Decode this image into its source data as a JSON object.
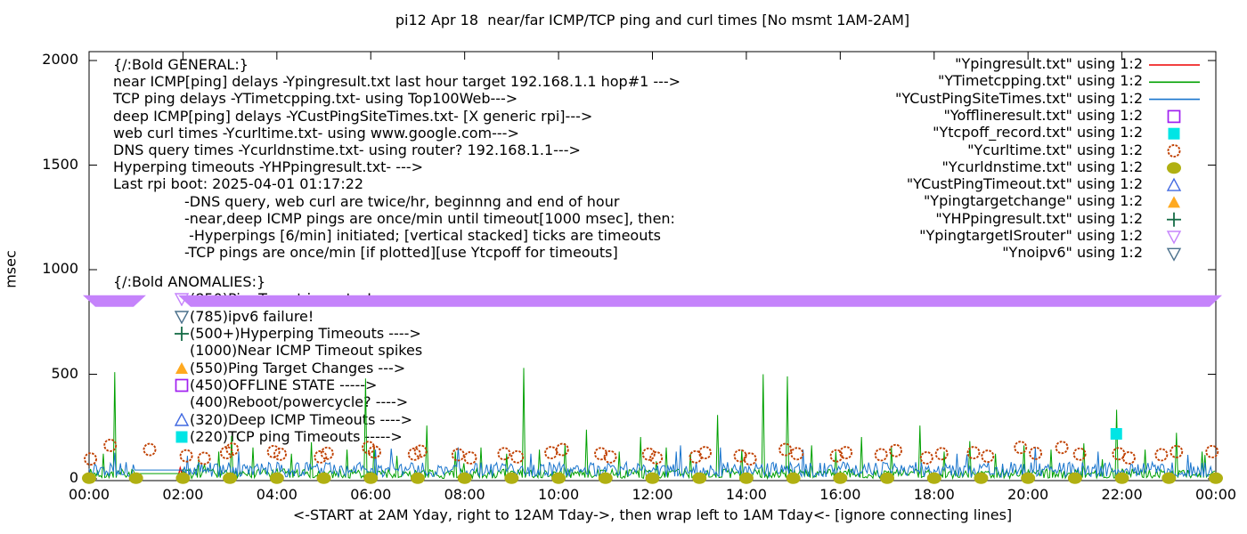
{
  "title": "pi12 Apr 18  near/far ICMP/TCP ping and curl times [No msmt 1AM-2AM]",
  "ylabel": "msec",
  "xlabel": "<-START at 2AM Yday, right to 12AM Tday->, then wrap left to 1AM Tday<- [ignore connecting lines]",
  "colors": {
    "near_icmp_red": "#ee0000",
    "tcp_ping_green": "#00a000",
    "deep_icmp_blue": "#1874cd",
    "offline_magenta": "#a020f0",
    "tcpoff_cyan": "#00e5e5",
    "curl_orange": "#c04000",
    "dns_olive": "#b0b012",
    "timeout_royalblue": "#4169e1",
    "targetchange_orange": "#ffa91f",
    "hyperping_green": "#156b45",
    "isrouter_violet": "#c583fb",
    "noipv6_steel": "#4a708b"
  },
  "annotations": {
    "general": {
      "lines": [
        "{/:Bold GENERAL:}",
        "near ICMP[ping] delays -Ypingresult.txt last hour target 192.168.1.1 hop#1 --->",
        "TCP ping delays -YTimetcpping.txt- using Top100Web--->",
        "deep ICMP[ping] delays -YCustPingSiteTimes.txt- [X generic rpi]--->",
        "web curl times -Ycurltime.txt- using www.google.com--->",
        "DNS query times -Ycurldnstime.txt- using router? 192.168.1.1--->",
        "Hyperping timeouts -YHPpingresult.txt- --->",
        "Last rpi boot: 2025-04-01 01:17:22"
      ],
      "indented": [
        "-DNS query, web curl are twice/hr, beginnng and end of hour",
        "-near,deep ICMP pings are once/min until timeout[1000 msec], then:",
        " -Hyperpings [6/min] initiated; [vertical stacked] ticks are timeouts",
        "-TCP pings are once/min [if plotted][use Ytcpoff for timeouts]"
      ]
    },
    "anomalies": {
      "header": "{/:Bold ANOMALIES:}",
      "items": [
        {
          "marker": "triangle-down-open",
          "color": "#c583fb",
          "text": "(850)PingTarget is router!"
        },
        {
          "marker": "triangle-down-open",
          "color": "#4a708b",
          "text": "(785)ipv6 failure!"
        },
        {
          "marker": "plus",
          "color": "#156b45",
          "text": "(500+)Hyperping Timeouts ---->"
        },
        {
          "marker": "",
          "color": "",
          "text": "(1000)Near ICMP Timeout spikes"
        },
        {
          "marker": "triangle-up-filled",
          "color": "#ffa91f",
          "text": "(550)Ping Target Changes --->"
        },
        {
          "marker": "square-open",
          "color": "#a020f0",
          "text": "(450)OFFLINE STATE ----->"
        },
        {
          "marker": "",
          "color": "",
          "text": "(400)Reboot/powercycle? ---->"
        },
        {
          "marker": "triangle-up-open",
          "color": "#4169e1",
          "text": "(320)Deep ICMP Timeouts ---->"
        },
        {
          "marker": "square-filled",
          "color": "#00e5e5",
          "text": "(220)TCP ping Timeouts ----->"
        }
      ]
    }
  },
  "chart_data": {
    "type": "line",
    "title": "pi12 Apr 18  near/far ICMP/TCP ping and curl times [No msmt 1AM-2AM]",
    "xlabel": "<-START at 2AM Yday, right to 12AM Tday->, then wrap left to 1AM Tday<- [ignore connecting lines]",
    "ylabel": "msec",
    "ylim": [
      0,
      2040
    ],
    "xlim_hours": [
      0,
      24
    ],
    "grid": false,
    "legend_position": "top-right",
    "x_axis": {
      "ticks": [
        "00:00",
        "02:00",
        "04:00",
        "06:00",
        "08:00",
        "10:00",
        "12:00",
        "14:00",
        "16:00",
        "18:00",
        "20:00",
        "22:00",
        "00:00"
      ],
      "hours": [
        0,
        2,
        4,
        6,
        8,
        10,
        12,
        14,
        16,
        18,
        20,
        22,
        24
      ]
    },
    "y_axis": {
      "ticks": [
        "0",
        "500",
        "1000",
        "1500",
        "2000"
      ],
      "values": [
        0,
        500,
        1000,
        1500,
        2000
      ]
    },
    "no_measurement_gap_hours": [
      1.0,
      2.0
    ],
    "series": [
      {
        "name": "Ypingresult.txt",
        "label": "\"Ypingresult.txt\" using 1:2",
        "color": "#ee0000",
        "marker": "line",
        "kind": "segment",
        "points": [
          [
            1.9,
            12
          ],
          [
            1.94,
            52
          ],
          [
            1.98,
            22
          ],
          [
            2.0,
            45
          ]
        ]
      },
      {
        "name": "YTimetcpping.txt",
        "label": "\"YTimetcpping.txt\" using 1:2",
        "color": "#00a000",
        "marker": "line",
        "kind": "noise",
        "noise": {
          "min": 2,
          "max": 48,
          "seed": 7
        },
        "gap": [
          0.95,
          2.0
        ],
        "gap_value": 25,
        "spikes": [
          [
            0.3,
            120
          ],
          [
            0.55,
            510
          ],
          [
            2.35,
            95
          ],
          [
            2.75,
            130
          ],
          [
            3.05,
            205
          ],
          [
            3.5,
            150
          ],
          [
            4.3,
            120
          ],
          [
            4.75,
            175
          ],
          [
            5.5,
            140
          ],
          [
            5.88,
            480
          ],
          [
            6.07,
            160
          ],
          [
            6.55,
            110
          ],
          [
            7.2,
            255
          ],
          [
            7.8,
            130
          ],
          [
            8.35,
            150
          ],
          [
            8.9,
            120
          ],
          [
            9.25,
            530
          ],
          [
            9.6,
            140
          ],
          [
            10.15,
            170
          ],
          [
            10.6,
            235
          ],
          [
            11.3,
            130
          ],
          [
            11.75,
            200
          ],
          [
            12.3,
            150
          ],
          [
            12.8,
            120
          ],
          [
            13.4,
            305
          ],
          [
            13.9,
            140
          ],
          [
            14.37,
            500
          ],
          [
            14.88,
            490
          ],
          [
            15.4,
            160
          ],
          [
            15.9,
            130
          ],
          [
            16.45,
            200
          ],
          [
            17.1,
            150
          ],
          [
            17.7,
            255
          ],
          [
            18.2,
            130
          ],
          [
            18.75,
            180
          ],
          [
            19.3,
            120
          ],
          [
            19.9,
            160
          ],
          [
            20.5,
            140
          ],
          [
            21.2,
            170
          ],
          [
            21.9,
            330
          ],
          [
            22.5,
            140
          ],
          [
            23.15,
            220
          ],
          [
            23.7,
            130
          ]
        ]
      },
      {
        "name": "YCustPingSiteTimes.txt",
        "label": "\"YCustPingSiteTimes.txt\" using 1:2",
        "color": "#1874cd",
        "marker": "line",
        "kind": "noise",
        "noise": {
          "min": 8,
          "max": 80,
          "seed": 13
        },
        "gap": [
          0.95,
          2.0
        ],
        "gap_value": 42,
        "spikes": [
          [
            2.1,
            110
          ],
          [
            3.2,
            130
          ],
          [
            6.1,
            140
          ],
          [
            9.4,
            120
          ],
          [
            12.5,
            130
          ],
          [
            13.45,
            150
          ],
          [
            15.2,
            140
          ],
          [
            18.5,
            120
          ],
          [
            21.5,
            130
          ],
          [
            23.4,
            115
          ]
        ]
      },
      {
        "name": "Yofflineresult.txt",
        "label": "\"Yofflineresult.txt\" using 1:2",
        "color": "#a020f0",
        "marker": "square-open",
        "kind": "points",
        "points": []
      },
      {
        "name": "Ytcpoff_record.txt",
        "label": "\"Ytcpoff_record.txt\" using 1:2",
        "color": "#00e5e5",
        "marker": "square-filled",
        "kind": "points",
        "points": [
          [
            21.88,
            215
          ]
        ]
      },
      {
        "name": "Ycurltime.txt",
        "label": "\"Ycurltime.txt\" using 1:2",
        "color": "#c04000",
        "marker": "circle-open",
        "kind": "points",
        "points": [
          [
            0.03,
            95
          ],
          [
            0.45,
            160
          ],
          [
            1.29,
            140
          ],
          [
            2.07,
            110
          ],
          [
            2.45,
            98
          ],
          [
            2.93,
            125
          ],
          [
            3.05,
            142
          ],
          [
            3.93,
            130
          ],
          [
            4.07,
            118
          ],
          [
            4.93,
            105
          ],
          [
            5.07,
            122
          ],
          [
            5.95,
            150
          ],
          [
            6.08,
            128
          ],
          [
            6.93,
            118
          ],
          [
            7.06,
            132
          ],
          [
            7.86,
            115
          ],
          [
            8.12,
            100
          ],
          [
            8.84,
            120
          ],
          [
            9.12,
            105
          ],
          [
            9.84,
            125
          ],
          [
            10.08,
            140
          ],
          [
            10.9,
            120
          ],
          [
            11.1,
            105
          ],
          [
            11.92,
            118
          ],
          [
            12.08,
            100
          ],
          [
            12.92,
            105
          ],
          [
            13.12,
            125
          ],
          [
            13.87,
            110
          ],
          [
            14.08,
            95
          ],
          [
            14.83,
            140
          ],
          [
            15.08,
            120
          ],
          [
            15.92,
            110
          ],
          [
            16.12,
            125
          ],
          [
            16.87,
            115
          ],
          [
            17.18,
            135
          ],
          [
            17.84,
            100
          ],
          [
            18.16,
            120
          ],
          [
            18.84,
            125
          ],
          [
            19.14,
            108
          ],
          [
            19.84,
            150
          ],
          [
            20.16,
            122
          ],
          [
            20.72,
            150
          ],
          [
            21.1,
            118
          ],
          [
            21.93,
            120
          ],
          [
            22.15,
            100
          ],
          [
            22.84,
            115
          ],
          [
            23.16,
            130
          ],
          [
            23.92,
            130
          ]
        ]
      },
      {
        "name": "Ycurldnstime.txt",
        "label": "\"Ycurldnstime.txt\" using 1:2",
        "color": "#b0b012",
        "marker": "circle-filled",
        "kind": "points",
        "points": [
          [
            0,
            3
          ],
          [
            1,
            3
          ],
          [
            2,
            3
          ],
          [
            3,
            3
          ],
          [
            4,
            3
          ],
          [
            5,
            3
          ],
          [
            6,
            3
          ],
          [
            7,
            3
          ],
          [
            8,
            3
          ],
          [
            9,
            3
          ],
          [
            10,
            3
          ],
          [
            11,
            3
          ],
          [
            12,
            3
          ],
          [
            13,
            3
          ],
          [
            14,
            3
          ],
          [
            15,
            3
          ],
          [
            16,
            3
          ],
          [
            17,
            3
          ],
          [
            18,
            3
          ],
          [
            19,
            3
          ],
          [
            20,
            3
          ],
          [
            21,
            3
          ],
          [
            22,
            3
          ],
          [
            23,
            3
          ],
          [
            24,
            3
          ]
        ]
      },
      {
        "name": "YCustPingTimeout.txt",
        "label": "\"YCustPingTimeout.txt\" using 1:2",
        "color": "#4169e1",
        "marker": "triangle-up-open",
        "kind": "points",
        "points": []
      },
      {
        "name": "Ypingtargetchange",
        "label": "\"Ypingtargetchange\" using 1:2",
        "color": "#ffa91f",
        "marker": "triangle-up-filled",
        "kind": "points",
        "points": []
      },
      {
        "name": "YHPpingresult.txt",
        "label": "\"YHPpingresult.txt\" using 1:2",
        "color": "#156b45",
        "marker": "plus",
        "kind": "points",
        "points": []
      },
      {
        "name": "YpingtargetISrouter",
        "label": "\"YpingtargetISrouter\" using 1:2",
        "color": "#c583fb",
        "marker": "triangle-down-open",
        "kind": "band",
        "value": 850,
        "segments": [
          [
            0,
            1.08
          ],
          [
            2.03,
            24
          ]
        ]
      },
      {
        "name": "Ynoipv6",
        "label": "\"Ynoipv6\" using 1:2",
        "color": "#4a708b",
        "marker": "triangle-down-open",
        "kind": "points",
        "points": []
      }
    ]
  }
}
